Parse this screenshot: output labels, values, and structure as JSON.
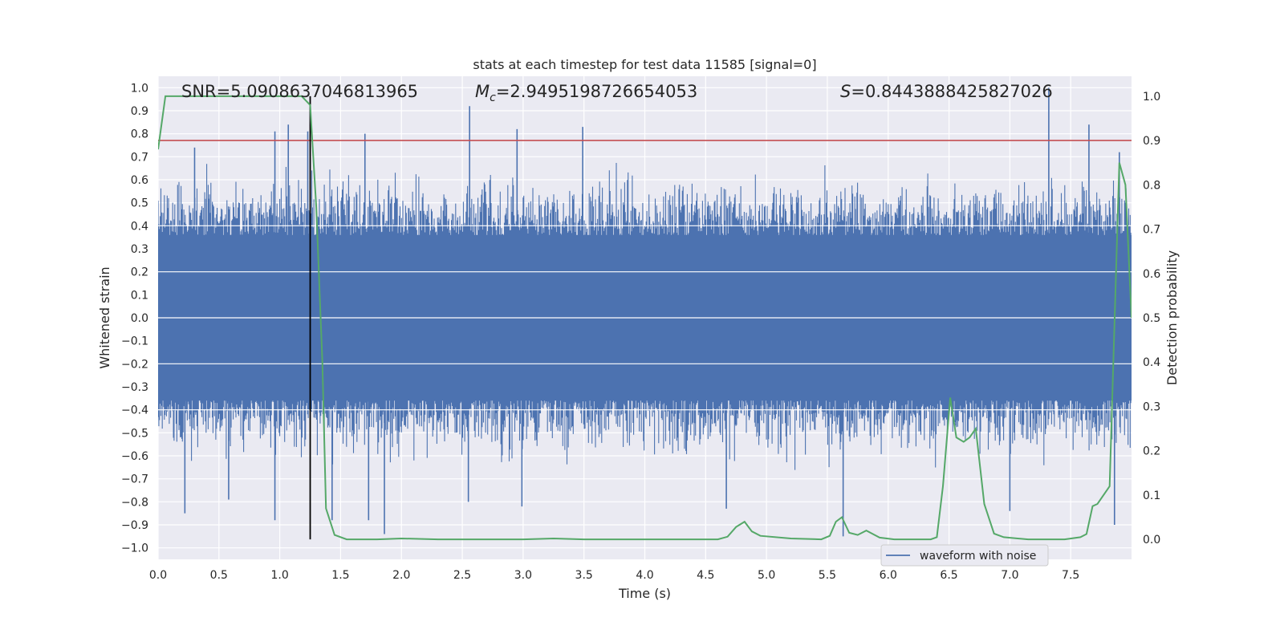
{
  "chart_data": {
    "type": "line",
    "title": "stats at each timestep for test data 11585 [signal=0]",
    "xlabel": "Time (s)",
    "ylabel": "Whitened strain",
    "y2label": "Detection probability",
    "xlim": [
      0.0,
      8.0
    ],
    "ylim": [
      -1.05,
      1.05
    ],
    "y2lim": [
      -0.045,
      1.045
    ],
    "xticks": [
      "0.0",
      "0.5",
      "1.0",
      "1.5",
      "2.0",
      "2.5",
      "3.0",
      "3.5",
      "4.0",
      "4.5",
      "5.0",
      "5.5",
      "6.0",
      "6.5",
      "7.0",
      "7.5"
    ],
    "xtick_values": [
      0.0,
      0.5,
      1.0,
      1.5,
      2.0,
      2.5,
      3.0,
      3.5,
      4.0,
      4.5,
      5.0,
      5.5,
      6.0,
      6.5,
      7.0,
      7.5
    ],
    "yticks": [
      "1.0",
      "0.9",
      "0.8",
      "0.7",
      "0.6",
      "0.5",
      "0.4",
      "0.3",
      "0.2",
      "0.1",
      "0.0",
      "−0.1",
      "−0.2",
      "−0.3",
      "−0.4",
      "−0.5",
      "−0.6",
      "−0.7",
      "−0.8",
      "−0.9",
      "−1.0"
    ],
    "ytick_values": [
      1.0,
      0.9,
      0.8,
      0.7,
      0.6,
      0.5,
      0.4,
      0.3,
      0.2,
      0.1,
      0.0,
      -0.1,
      -0.2,
      -0.3,
      -0.4,
      -0.5,
      -0.6,
      -0.7,
      -0.8,
      -0.9,
      -1.0
    ],
    "y2ticks": [
      "1.0",
      "0.9",
      "0.8",
      "0.7",
      "0.6",
      "0.5",
      "0.4",
      "0.3",
      "0.2",
      "0.1",
      "0.0"
    ],
    "y2tick_values": [
      1.0,
      0.9,
      0.8,
      0.7,
      0.6,
      0.5,
      0.4,
      0.3,
      0.2,
      0.1,
      0.0
    ],
    "annotations": {
      "snr": "SNR=5.0908637046813965",
      "mc_prefix": "M",
      "mc_sub": "c",
      "mc_value": "=2.9495198726654053",
      "s_prefix": "S",
      "s_value": "=0.8443888425827026"
    },
    "threshold": {
      "y2": 0.9,
      "color": "#c44e52"
    },
    "marker_line": {
      "x": 1.25,
      "color": "#000000"
    },
    "strain_series": {
      "name": "waveform with noise",
      "color": "#4c72b0",
      "peaks": [
        {
          "x": 0.3,
          "y": 0.74
        },
        {
          "x": 0.96,
          "y": 0.81
        },
        {
          "x": 1.07,
          "y": 0.84
        },
        {
          "x": 1.23,
          "y": 0.81
        },
        {
          "x": 1.7,
          "y": 0.8
        },
        {
          "x": 2.56,
          "y": 0.92
        },
        {
          "x": 2.95,
          "y": 0.82
        },
        {
          "x": 3.49,
          "y": 0.83
        },
        {
          "x": 7.32,
          "y": 1.0
        },
        {
          "x": 7.65,
          "y": 0.84
        },
        {
          "x": 7.9,
          "y": 0.72
        }
      ],
      "troughs": [
        {
          "x": 0.22,
          "y": -0.85
        },
        {
          "x": 0.58,
          "y": -0.79
        },
        {
          "x": 0.96,
          "y": -0.88
        },
        {
          "x": 1.43,
          "y": -0.88
        },
        {
          "x": 1.73,
          "y": -0.88
        },
        {
          "x": 1.86,
          "y": -0.94
        },
        {
          "x": 2.55,
          "y": -0.8
        },
        {
          "x": 2.99,
          "y": -0.82
        },
        {
          "x": 4.67,
          "y": -0.83
        },
        {
          "x": 5.63,
          "y": -0.95
        },
        {
          "x": 7.0,
          "y": -0.84
        },
        {
          "x": 7.86,
          "y": -0.9
        }
      ]
    },
    "probability_series": {
      "color": "#55a868",
      "x": [
        0.0,
        0.06,
        0.13,
        0.3,
        0.6,
        0.9,
        1.05,
        1.18,
        1.25,
        1.3,
        1.35,
        1.38,
        1.45,
        1.55,
        1.8,
        2.0,
        2.3,
        3.0,
        3.25,
        3.5,
        4.0,
        4.6,
        4.68,
        4.75,
        4.82,
        4.88,
        4.95,
        5.2,
        5.45,
        5.52,
        5.57,
        5.62,
        5.68,
        5.75,
        5.82,
        5.93,
        6.05,
        6.35,
        6.4,
        6.45,
        6.51,
        6.56,
        6.62,
        6.67,
        6.72,
        6.79,
        6.87,
        6.95,
        7.15,
        7.45,
        7.58,
        7.63,
        7.68,
        7.72,
        7.82,
        7.9,
        7.95,
        8.0
      ],
      "y": [
        0.88,
        1.0,
        1.0,
        1.0,
        1.0,
        1.0,
        1.0,
        1.0,
        0.98,
        0.75,
        0.4,
        0.07,
        0.01,
        0.0,
        0.0,
        0.002,
        0.0,
        0.0,
        0.002,
        0.0,
        0.0,
        0.0,
        0.006,
        0.028,
        0.04,
        0.018,
        0.008,
        0.002,
        0.0,
        0.008,
        0.04,
        0.05,
        0.015,
        0.01,
        0.02,
        0.004,
        0.0,
        0.0,
        0.005,
        0.12,
        0.32,
        0.23,
        0.22,
        0.23,
        0.25,
        0.08,
        0.013,
        0.005,
        0.0,
        0.0,
        0.005,
        0.012,
        0.075,
        0.08,
        0.12,
        0.85,
        0.8,
        0.5
      ]
    },
    "legend": {
      "placement": "lower-right",
      "entries": [
        "waveform with noise"
      ]
    },
    "grid": true
  }
}
